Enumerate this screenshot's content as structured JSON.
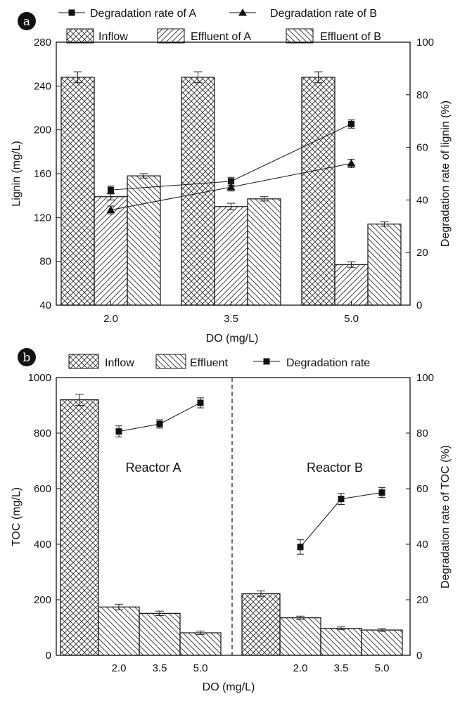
{
  "chart_data": [
    {
      "panel_label": "a",
      "type": "bar",
      "categories": [
        "2.0",
        "3.5",
        "5.0"
      ],
      "xlabel": "DO (mg/L)",
      "ylabel": "Lignin (mg/L)",
      "y2label": "Degradation rate of lignin (%)",
      "ylim": [
        40,
        280
      ],
      "y2lim": [
        0,
        100
      ],
      "yticks": [
        "40",
        "80",
        "120",
        "160",
        "200",
        "240",
        "280"
      ],
      "y2ticks": [
        "0",
        "20",
        "40",
        "60",
        "80",
        "100"
      ],
      "bar_series": [
        {
          "name": "Inflow",
          "pattern": "crosshatch",
          "values": [
            248,
            248,
            248
          ],
          "errors": [
            5,
            5,
            5
          ]
        },
        {
          "name": "Effluent of A",
          "pattern": "forward-diagonal",
          "values": [
            139,
            130,
            77
          ],
          "errors": [
            3,
            3,
            2.5
          ]
        },
        {
          "name": "Effluent of B",
          "pattern": "backward-diagonal",
          "values": [
            158,
            137,
            114
          ],
          "errors": [
            2,
            2,
            2
          ]
        }
      ],
      "line_series": [
        {
          "name": "Degradation rate of A",
          "marker": "square",
          "values": [
            43.8,
            47.1,
            68.9
          ],
          "errors": [
            1.5,
            1.5,
            1.6
          ]
        },
        {
          "name": "Degradation rate of B",
          "marker": "triangle",
          "values": [
            36.2,
            44.9,
            53.9
          ],
          "errors": [
            1.5,
            1.5,
            1.6
          ]
        }
      ]
    },
    {
      "panel_label": "b",
      "type": "bar",
      "groups": [
        {
          "annotation": "Reactor A",
          "categories": [
            "2.0",
            "3.5",
            "5.0"
          ],
          "inflow": 920,
          "inflow_error": 20,
          "effluent": [
            174,
            151,
            81
          ],
          "effluent_errors": [
            10,
            8,
            6
          ],
          "rate": [
            80.6,
            83.3,
            90.9
          ],
          "rate_errors": [
            2,
            1.5,
            1.8
          ]
        },
        {
          "annotation": "Reactor B",
          "categories": [
            "2.0",
            "3.5",
            "5.0"
          ],
          "inflow": 222,
          "inflow_error": 10,
          "effluent": [
            135,
            97,
            91
          ],
          "effluent_errors": [
            6,
            5,
            5
          ],
          "rate": [
            39,
            56.3,
            58.6
          ],
          "rate_errors": [
            2.6,
            2,
            1.8
          ]
        }
      ],
      "xlabel": "DO (mg/L)",
      "ylabel": "TOC (mg/L)",
      "y2label": "Degradation rate of TOC (%)",
      "ylim": [
        0,
        1000
      ],
      "y2lim": [
        0,
        100
      ],
      "yticks": [
        "0",
        "200",
        "400",
        "600",
        "800",
        "1000"
      ],
      "y2ticks": [
        "0",
        "20",
        "40",
        "60",
        "80",
        "100"
      ],
      "legend": [
        {
          "name": "Inflow",
          "kind": "bar",
          "pattern": "crosshatch"
        },
        {
          "name": "Effluent",
          "kind": "bar",
          "pattern": "backward-diagonal"
        },
        {
          "name": "Degradation rate",
          "kind": "line",
          "marker": "square"
        }
      ]
    }
  ]
}
